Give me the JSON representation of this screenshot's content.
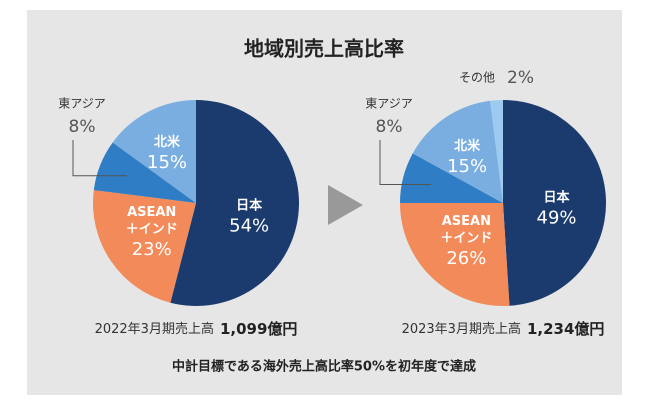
{
  "title": "地域別売上高比率",
  "footnote": "中計目標である海外売上高比率50%を初年度で達成",
  "chart_data": [
    {
      "type": "pie",
      "caption": "2022年3月期売上高",
      "total": "1,099億円",
      "categories": [
        "日本",
        "ASEAN\n＋インド",
        "東アジア",
        "北米"
      ],
      "values": [
        54,
        23,
        8,
        15
      ],
      "value_labels": [
        "54%",
        "23%",
        "8%",
        "15%"
      ],
      "colors": [
        "#1b3a6e",
        "#f28a5a",
        "#2f7dc4",
        "#7aaee0"
      ]
    },
    {
      "type": "pie",
      "caption": "2023年3月期売上高",
      "total": "1,234億円",
      "categories": [
        "日本",
        "ASEAN\n＋インド",
        "東アジア",
        "北米",
        "その他"
      ],
      "values": [
        49,
        26,
        8,
        15,
        2
      ],
      "value_labels": [
        "49%",
        "26%",
        "8%",
        "15%",
        "2%"
      ],
      "colors": [
        "#1b3a6e",
        "#f28a5a",
        "#2f7dc4",
        "#7aaee0",
        "#9ccaf0"
      ]
    }
  ]
}
